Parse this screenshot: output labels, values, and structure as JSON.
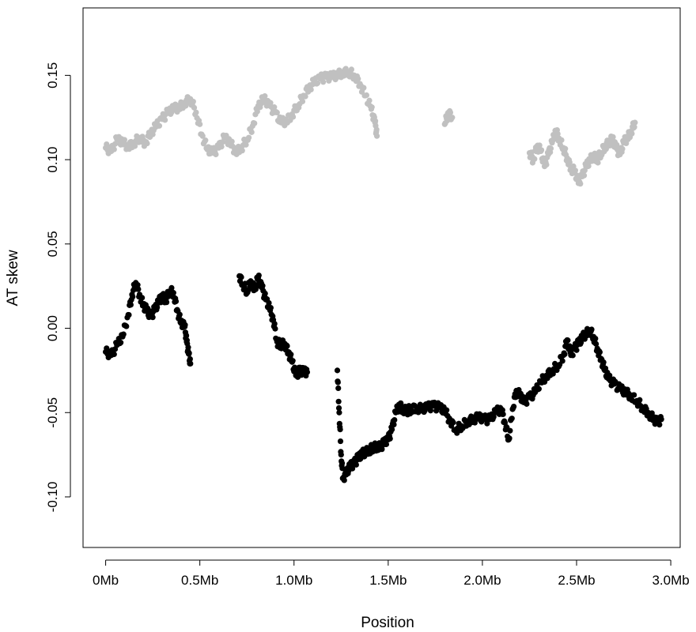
{
  "chart_data": {
    "type": "scatter",
    "title": "",
    "xlabel": "Position",
    "ylabel": "AT skew",
    "xlim": [
      -0.12,
      3.05
    ],
    "ylim": [
      -0.13,
      0.19
    ],
    "x_unit": "Mb",
    "x_ticks": [
      0,
      0.5,
      1.0,
      1.5,
      2.0,
      2.5,
      3.0
    ],
    "x_tick_labels": [
      "0Mb",
      "0.5Mb",
      "1.0Mb",
      "1.5Mb",
      "2.0Mb",
      "2.5Mb",
      "3.0Mb"
    ],
    "y_ticks": [
      -0.1,
      -0.05,
      0.0,
      0.05,
      0.1,
      0.15
    ],
    "y_tick_labels": [
      "-0.10",
      "-0.05",
      "0.00",
      "0.05",
      "0.10",
      "0.15"
    ],
    "grid": false,
    "legend": "none",
    "series": [
      {
        "color": "#c0c0c0",
        "points": [
          [
            0.0,
            0.107
          ],
          [
            0.03,
            0.105
          ],
          [
            0.06,
            0.112
          ],
          [
            0.09,
            0.11
          ],
          [
            0.12,
            0.108
          ],
          [
            0.15,
            0.11
          ],
          [
            0.18,
            0.113
          ],
          [
            0.21,
            0.11
          ],
          [
            0.24,
            0.116
          ],
          [
            0.27,
            0.12
          ],
          [
            0.3,
            0.124
          ],
          [
            0.33,
            0.128
          ],
          [
            0.36,
            0.13
          ],
          [
            0.39,
            0.131
          ],
          [
            0.42,
            0.134
          ],
          [
            0.45,
            0.136
          ],
          [
            0.48,
            0.128
          ],
          [
            0.51,
            0.115
          ],
          [
            0.54,
            0.106
          ],
          [
            0.57,
            0.104
          ],
          [
            0.6,
            0.107
          ],
          [
            0.63,
            0.113
          ],
          [
            0.66,
            0.11
          ],
          [
            0.69,
            0.105
          ],
          [
            0.72,
            0.107
          ],
          [
            0.75,
            0.112
          ],
          [
            0.78,
            0.12
          ],
          [
            0.81,
            0.132
          ],
          [
            0.84,
            0.136
          ],
          [
            0.87,
            0.132
          ],
          [
            0.9,
            0.128
          ],
          [
            0.93,
            0.122
          ],
          [
            0.96,
            0.123
          ],
          [
            0.99,
            0.127
          ],
          [
            1.02,
            0.132
          ],
          [
            1.05,
            0.138
          ],
          [
            1.08,
            0.143
          ],
          [
            1.11,
            0.146
          ],
          [
            1.14,
            0.148
          ],
          [
            1.17,
            0.149
          ],
          [
            1.2,
            0.149
          ],
          [
            1.23,
            0.15
          ],
          [
            1.26,
            0.152
          ],
          [
            1.29,
            0.152
          ],
          [
            1.32,
            0.15
          ],
          [
            1.35,
            0.145
          ],
          [
            1.38,
            0.138
          ],
          [
            1.41,
            0.13
          ],
          [
            1.43,
            0.122
          ],
          [
            1.44,
            0.114
          ],
          [
            1.8,
            0.121
          ],
          [
            1.82,
            0.128
          ],
          [
            1.84,
            0.125
          ],
          [
            2.25,
            0.104
          ],
          [
            2.27,
            0.1
          ],
          [
            2.29,
            0.108
          ],
          [
            2.31,
            0.105
          ],
          [
            2.33,
            0.096
          ],
          [
            2.35,
            0.103
          ],
          [
            2.37,
            0.11
          ],
          [
            2.39,
            0.117
          ],
          [
            2.41,
            0.112
          ],
          [
            2.43,
            0.107
          ],
          [
            2.45,
            0.101
          ],
          [
            2.47,
            0.095
          ],
          [
            2.49,
            0.093
          ],
          [
            2.51,
            0.086
          ],
          [
            2.53,
            0.09
          ],
          [
            2.55,
            0.096
          ],
          [
            2.57,
            0.099
          ],
          [
            2.59,
            0.103
          ],
          [
            2.61,
            0.1
          ],
          [
            2.63,
            0.104
          ],
          [
            2.65,
            0.108
          ],
          [
            2.67,
            0.11
          ],
          [
            2.69,
            0.112
          ],
          [
            2.71,
            0.107
          ],
          [
            2.73,
            0.103
          ],
          [
            2.75,
            0.11
          ],
          [
            2.77,
            0.113
          ],
          [
            2.79,
            0.117
          ],
          [
            2.81,
            0.122
          ]
        ]
      },
      {
        "color": "#000000",
        "points": [
          [
            0.0,
            -0.014
          ],
          [
            0.03,
            -0.016
          ],
          [
            0.06,
            -0.01
          ],
          [
            0.09,
            -0.005
          ],
          [
            0.12,
            0.008
          ],
          [
            0.14,
            0.02
          ],
          [
            0.16,
            0.027
          ],
          [
            0.18,
            0.02
          ],
          [
            0.2,
            0.014
          ],
          [
            0.22,
            0.01
          ],
          [
            0.24,
            0.007
          ],
          [
            0.26,
            0.011
          ],
          [
            0.28,
            0.015
          ],
          [
            0.3,
            0.019
          ],
          [
            0.32,
            0.017
          ],
          [
            0.34,
            0.022
          ],
          [
            0.36,
            0.021
          ],
          [
            0.38,
            0.011
          ],
          [
            0.4,
            0.003
          ],
          [
            0.42,
            0.001
          ],
          [
            0.43,
            -0.008
          ],
          [
            0.44,
            -0.015
          ],
          [
            0.45,
            -0.021
          ],
          [
            0.71,
            0.031
          ],
          [
            0.73,
            0.026
          ],
          [
            0.75,
            0.022
          ],
          [
            0.77,
            0.028
          ],
          [
            0.79,
            0.023
          ],
          [
            0.81,
            0.03
          ],
          [
            0.83,
            0.024
          ],
          [
            0.85,
            0.017
          ],
          [
            0.87,
            0.012
          ],
          [
            0.89,
            0.005
          ],
          [
            0.91,
            -0.008
          ],
          [
            0.93,
            -0.01
          ],
          [
            0.95,
            -0.009
          ],
          [
            0.97,
            -0.014
          ],
          [
            0.99,
            -0.02
          ],
          [
            1.01,
            -0.028
          ],
          [
            1.03,
            -0.025
          ],
          [
            1.05,
            -0.026
          ],
          [
            1.07,
            -0.026
          ],
          [
            1.23,
            -0.025
          ],
          [
            1.24,
            -0.05
          ],
          [
            1.25,
            -0.075
          ],
          [
            1.26,
            -0.089
          ],
          [
            1.28,
            -0.085
          ],
          [
            1.3,
            -0.082
          ],
          [
            1.32,
            -0.08
          ],
          [
            1.34,
            -0.077
          ],
          [
            1.36,
            -0.075
          ],
          [
            1.38,
            -0.073
          ],
          [
            1.4,
            -0.072
          ],
          [
            1.42,
            -0.071
          ],
          [
            1.44,
            -0.07
          ],
          [
            1.46,
            -0.07
          ],
          [
            1.48,
            -0.068
          ],
          [
            1.5,
            -0.066
          ],
          [
            1.52,
            -0.06
          ],
          [
            1.54,
            -0.05
          ],
          [
            1.56,
            -0.046
          ],
          [
            1.58,
            -0.048
          ],
          [
            1.6,
            -0.049
          ],
          [
            1.62,
            -0.048
          ],
          [
            1.65,
            -0.047
          ],
          [
            1.68,
            -0.048
          ],
          [
            1.71,
            -0.047
          ],
          [
            1.74,
            -0.046
          ],
          [
            1.77,
            -0.047
          ],
          [
            1.8,
            -0.049
          ],
          [
            1.83,
            -0.055
          ],
          [
            1.86,
            -0.06
          ],
          [
            1.89,
            -0.058
          ],
          [
            1.92,
            -0.055
          ],
          [
            1.95,
            -0.054
          ],
          [
            1.98,
            -0.053
          ],
          [
            2.01,
            -0.054
          ],
          [
            2.04,
            -0.054
          ],
          [
            2.07,
            -0.05
          ],
          [
            2.1,
            -0.048
          ],
          [
            2.12,
            -0.056
          ],
          [
            2.14,
            -0.066
          ],
          [
            2.16,
            -0.048
          ],
          [
            2.18,
            -0.037
          ],
          [
            2.2,
            -0.04
          ],
          [
            2.22,
            -0.044
          ],
          [
            2.25,
            -0.041
          ],
          [
            2.28,
            -0.038
          ],
          [
            2.31,
            -0.032
          ],
          [
            2.34,
            -0.028
          ],
          [
            2.37,
            -0.025
          ],
          [
            2.4,
            -0.022
          ],
          [
            2.43,
            -0.016
          ],
          [
            2.45,
            -0.007
          ],
          [
            2.47,
            -0.016
          ],
          [
            2.49,
            -0.012
          ],
          [
            2.51,
            -0.009
          ],
          [
            2.53,
            -0.006
          ],
          [
            2.55,
            -0.003
          ],
          [
            2.57,
            -0.001
          ],
          [
            2.59,
            -0.005
          ],
          [
            2.61,
            -0.012
          ],
          [
            2.63,
            -0.018
          ],
          [
            2.65,
            -0.025
          ],
          [
            2.67,
            -0.03
          ],
          [
            2.7,
            -0.033
          ],
          [
            2.73,
            -0.036
          ],
          [
            2.76,
            -0.038
          ],
          [
            2.79,
            -0.04
          ],
          [
            2.82,
            -0.043
          ],
          [
            2.85,
            -0.047
          ],
          [
            2.88,
            -0.05
          ],
          [
            2.91,
            -0.054
          ],
          [
            2.93,
            -0.056
          ],
          [
            2.95,
            -0.054
          ]
        ]
      }
    ]
  }
}
